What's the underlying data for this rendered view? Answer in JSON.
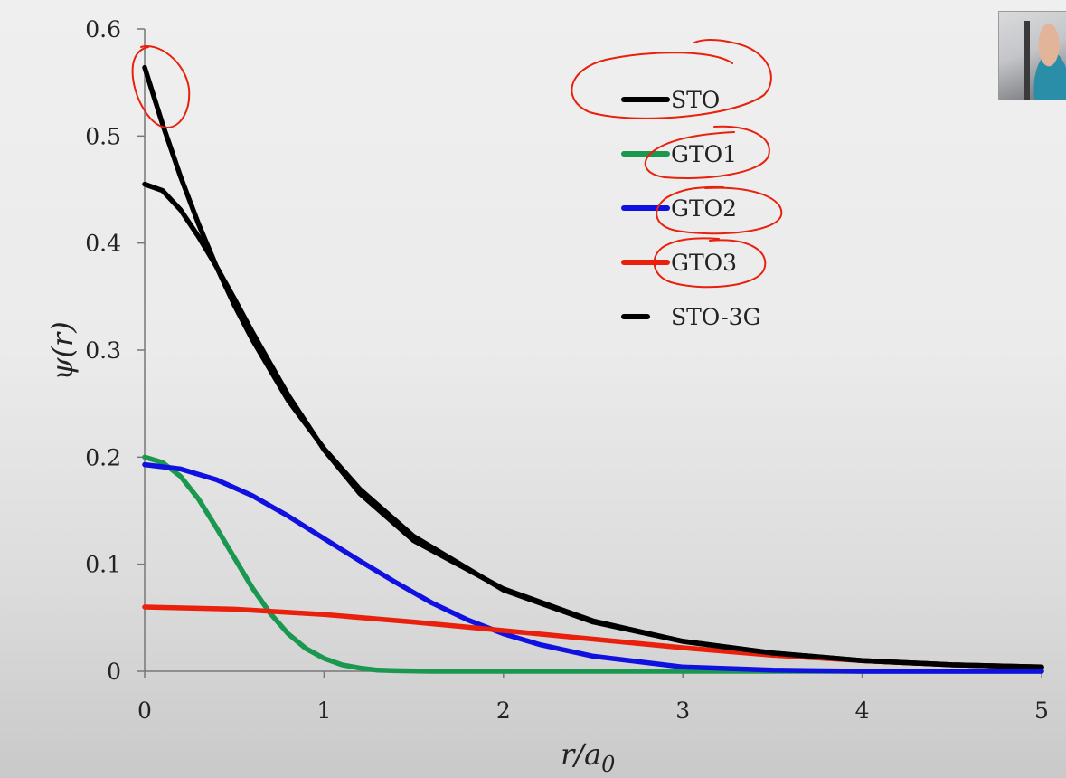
{
  "chart_data": {
    "type": "line",
    "xlabel": "r/a",
    "xlabel_sub": "0",
    "ylabel": "ψ(r)",
    "xlim": [
      0,
      5
    ],
    "ylim": [
      0,
      0.6
    ],
    "x_ticks": [
      "0",
      "1",
      "2",
      "3",
      "4",
      "5"
    ],
    "y_ticks": [
      "0",
      "0.1",
      "0.2",
      "0.3",
      "0.4",
      "0.5",
      "0.6"
    ],
    "grid": false,
    "legend_position": "top-center",
    "series": [
      {
        "name": "STO",
        "color": "#000000",
        "style": "solid",
        "x": [
          0,
          0.1,
          0.2,
          0.3,
          0.4,
          0.5,
          0.6,
          0.8,
          1.0,
          1.2,
          1.5,
          2.0,
          2.5,
          3.0,
          3.5,
          4.0,
          4.5,
          5.0
        ],
        "y": [
          0.564,
          0.511,
          0.462,
          0.418,
          0.378,
          0.342,
          0.31,
          0.253,
          0.208,
          0.17,
          0.126,
          0.076,
          0.046,
          0.028,
          0.017,
          0.01,
          0.006,
          0.004
        ]
      },
      {
        "name": "GTO1",
        "color": "#1a9850",
        "style": "solid",
        "x": [
          0,
          0.1,
          0.2,
          0.3,
          0.4,
          0.5,
          0.6,
          0.7,
          0.8,
          0.9,
          1.0,
          1.1,
          1.2,
          1.3,
          1.4,
          1.6,
          2.0,
          3.0,
          4.0,
          5.0
        ],
        "y": [
          0.2,
          0.195,
          0.182,
          0.161,
          0.134,
          0.106,
          0.078,
          0.054,
          0.035,
          0.021,
          0.012,
          0.006,
          0.003,
          0.001,
          0.0005,
          0,
          0,
          0,
          0,
          0
        ]
      },
      {
        "name": "GTO2",
        "color": "#1010e0",
        "style": "solid",
        "x": [
          0,
          0.2,
          0.4,
          0.6,
          0.8,
          1.0,
          1.2,
          1.4,
          1.6,
          1.8,
          2.0,
          2.2,
          2.5,
          3.0,
          3.5,
          4.0,
          5.0
        ],
        "y": [
          0.193,
          0.189,
          0.179,
          0.164,
          0.145,
          0.124,
          0.103,
          0.083,
          0.064,
          0.048,
          0.035,
          0.025,
          0.014,
          0.004,
          0.001,
          0,
          0
        ]
      },
      {
        "name": "GTO3",
        "color": "#e8200c",
        "style": "solid",
        "x": [
          0,
          0.5,
          1.0,
          1.5,
          2.0,
          2.5,
          3.0,
          3.5,
          4.0,
          4.5,
          5.0
        ],
        "y": [
          0.06,
          0.058,
          0.053,
          0.046,
          0.038,
          0.03,
          0.022,
          0.015,
          0.01,
          0.006,
          0.004
        ]
      },
      {
        "name": "STO-3G",
        "color": "#000000",
        "style": "dashed",
        "x": [
          0,
          0.1,
          0.2,
          0.3,
          0.4,
          0.5,
          0.6,
          0.8,
          1.0,
          1.2,
          1.5,
          2.0,
          2.5,
          3.0,
          3.5,
          4.0,
          4.5,
          5.0
        ],
        "y": [
          0.455,
          0.449,
          0.431,
          0.406,
          0.378,
          0.348,
          0.317,
          0.258,
          0.207,
          0.166,
          0.122,
          0.077,
          0.047,
          0.028,
          0.017,
          0.01,
          0.006,
          0.004
        ]
      }
    ]
  },
  "annotations": {
    "pen_color": "#e8200c",
    "circled": [
      "STO peak at r=0",
      "STO",
      "GTO1",
      "GTO2",
      "GTO3"
    ]
  },
  "webcam": {
    "label": "presenter webcam"
  }
}
